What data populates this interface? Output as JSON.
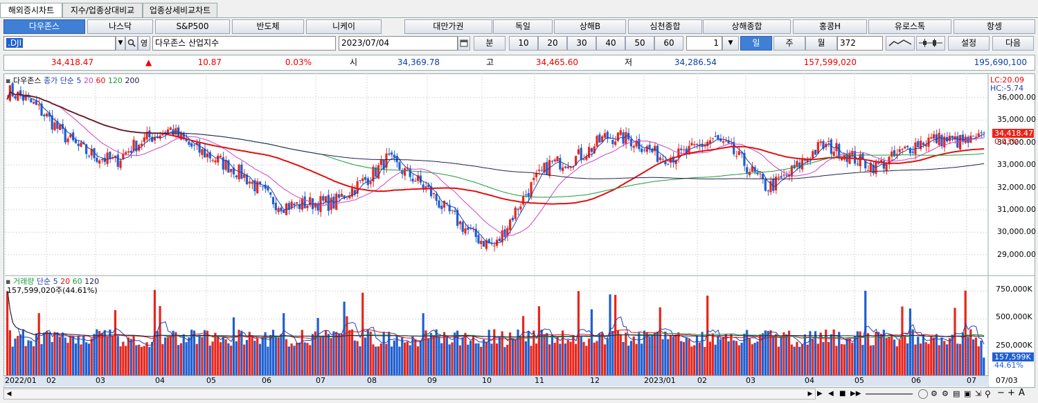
{
  "tabs": [
    "해외증시차트",
    "지수/업종상대비교",
    "업종상세비교차트"
  ],
  "indices": [
    "다우존스",
    "나스닥",
    "S&P500",
    "반도체",
    "니케이",
    "대만가권",
    "독일",
    "상해B",
    "심천종합",
    "상해종합",
    "홍콩H",
    "유로스톡",
    "항셍"
  ],
  "toolbar": {
    "code": ".DJI",
    "name": "다우존스 산업지수",
    "date": "2023/07/04",
    "minute_label": "분",
    "minute_options": [
      "10",
      "20",
      "30",
      "40",
      "50",
      "60"
    ],
    "interval_value": "1",
    "period_tabs": [
      "일",
      "주",
      "월"
    ],
    "count": "372",
    "settings_label": "설정",
    "next_label": "다음",
    "small_label": "영"
  },
  "quote": {
    "price": "34,418.47",
    "arrow": "▲",
    "change": "10.87",
    "change_pct": "0.03%",
    "open_label": "시",
    "open": "34,369.78",
    "high_label": "고",
    "high": "34,465.60",
    "low_label": "저",
    "low": "34,286.54",
    "volume": "157,599,020",
    "value": "195,690,100"
  },
  "price_panel": {
    "legend": {
      "name": "다우존스",
      "ma_label": "종가 단순",
      "periods": [
        "5",
        "20",
        "60",
        "120",
        "200"
      ]
    },
    "lc": "LC:20.09",
    "hc": "HC:-5.74",
    "current_tag": "34,418.47",
    "current_pct": "0.03%",
    "y_ticks": [
      "36,000.00",
      "35,000.00",
      "34,000.00",
      "33,000.00",
      "32,000.00",
      "31,000.00",
      "30,000.00",
      "29,000.00"
    ]
  },
  "volume_panel": {
    "legend": {
      "name": "거래량",
      "ma_label": "단순",
      "periods": [
        "5",
        "20",
        "60",
        "120"
      ]
    },
    "info": "157,599,020주(44.61%)",
    "y_ticks": [
      "750,000K",
      "500,000K",
      "250,000K"
    ],
    "current_tag": "157,599K",
    "current_pct": "44.61%"
  },
  "x_labels": [
    "2022/01",
    "02",
    "03",
    "04",
    "05",
    "06",
    "07",
    "08",
    "09",
    "10",
    "11",
    "12",
    "2023/01",
    "02",
    "03",
    "04",
    "05",
    "06",
    "07"
  ],
  "x_end_label": "07/03",
  "colors": {
    "up": "#e8251b",
    "down": "#1f5fd0",
    "ma5": "#1f3fb0",
    "ma20": "#d040c8",
    "ma60": "#e01010",
    "ma120": "#1a9a3a",
    "ma200": "#202050",
    "active": "#3f7fd6"
  },
  "chart_data": {
    "type": "candlestick",
    "title": "다우존스",
    "x_range": [
      "2022/01",
      "2023/07/04"
    ],
    "ylim": [
      28500,
      36500
    ],
    "price_anchors": [
      {
        "date": "2022/01",
        "value": 36300
      },
      {
        "date": "2022/02",
        "value": 34500
      },
      {
        "date": "2022/03",
        "value": 33000
      },
      {
        "date": "2022/04",
        "value": 34800
      },
      {
        "date": "2022/05",
        "value": 32800
      },
      {
        "date": "2022/06",
        "value": 31500
      },
      {
        "date": "2022/07",
        "value": 31000
      },
      {
        "date": "2022/08",
        "value": 33500
      },
      {
        "date": "2022/09",
        "value": 31000
      },
      {
        "date": "2022/10",
        "value": 29500
      },
      {
        "date": "2022/11",
        "value": 33000
      },
      {
        "date": "2022/12",
        "value": 34200
      },
      {
        "date": "2023/01",
        "value": 33500
      },
      {
        "date": "2023/02",
        "value": 34000
      },
      {
        "date": "2023/03",
        "value": 32200
      },
      {
        "date": "2023/04",
        "value": 33600
      },
      {
        "date": "2023/05",
        "value": 33200
      },
      {
        "date": "2023/06",
        "value": 33900
      },
      {
        "date": "2023/07",
        "value": 34418
      }
    ],
    "last": {
      "open": 34369.78,
      "high": 34465.6,
      "low": 34286.54,
      "close": 34418.47,
      "volume": 157599020
    },
    "volume_ylim": [
      0,
      850000000
    ]
  }
}
